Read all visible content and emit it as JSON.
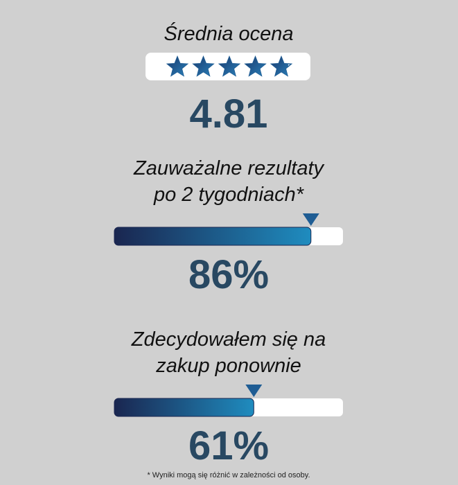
{
  "rating": {
    "title": "Średnia ocena",
    "value": 4.81,
    "value_label": "4.81"
  },
  "metrics": [
    {
      "title_lines": [
        "Zauważalne rezultaty",
        "po 2 tygodniach*"
      ],
      "value": 86,
      "value_label": "86%"
    },
    {
      "title_lines": [
        "Zdecydowałem się na",
        "zakup ponownie"
      ],
      "value": 61,
      "value_label": "61%"
    }
  ],
  "footnote": "* Wyniki mogą się różnić w zależności od osoby."
}
